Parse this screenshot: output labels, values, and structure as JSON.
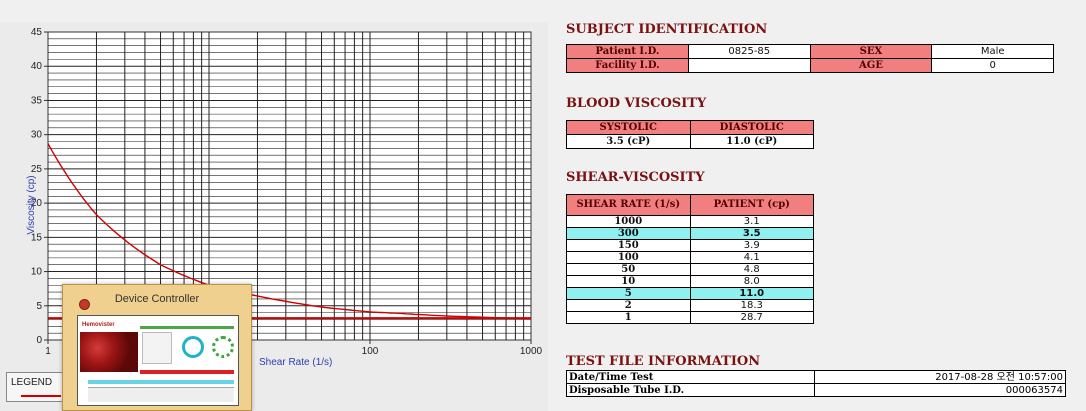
{
  "chart_data": {
    "type": "line",
    "x_scale": "log",
    "xlim": [
      1,
      1000
    ],
    "ylim": [
      0,
      45
    ],
    "x_ticks": [
      "1",
      "100",
      "1000"
    ],
    "y_ticks": [
      "0",
      "5",
      "10",
      "15",
      "20",
      "25",
      "30",
      "35",
      "40",
      "45"
    ],
    "xlabel": "Shear Rate (1/s)",
    "ylabel": "Viscosity (cp)",
    "grid": true,
    "series": [
      {
        "color": "#d00000",
        "points": [
          [
            1,
            28.7
          ],
          [
            2,
            18.3
          ],
          [
            5,
            11.0
          ],
          [
            10,
            8.0
          ],
          [
            50,
            4.8
          ],
          [
            100,
            4.1
          ],
          [
            150,
            3.9
          ],
          [
            300,
            3.5
          ],
          [
            1000,
            3.1
          ]
        ]
      },
      {
        "color": "#d00000",
        "points": [
          [
            1,
            3.2
          ],
          [
            1000,
            3.2
          ]
        ]
      }
    ]
  },
  "legend": {
    "label": "LEGEND"
  },
  "device_controller": {
    "title": "Device Controller",
    "logo": "Hemovister"
  },
  "subject": {
    "title": "SUBJECT IDENTIFICATION",
    "patient_id_label": "Patient I.D.",
    "patient_id": "0825-85",
    "sex_label": "SEX",
    "sex": "Male",
    "facility_id_label": "Facility I.D.",
    "facility_id": "",
    "age_label": "AGE",
    "age": "0"
  },
  "blood": {
    "title": "BLOOD VISCOSITY",
    "systolic_label": "SYSTOLIC",
    "systolic": "3.5 (cP)",
    "diastolic_label": "DIASTOLIC",
    "diastolic": "11.0 (cP)"
  },
  "shear": {
    "title": "SHEAR-VISCOSITY",
    "col_rate": "SHEAR RATE (1/s)",
    "col_patient": "PATIENT (cp)",
    "rows": [
      {
        "rate": "1000",
        "value": "3.1"
      },
      {
        "rate": "300",
        "value": "3.5"
      },
      {
        "rate": "150",
        "value": "3.9"
      },
      {
        "rate": "100",
        "value": "4.1"
      },
      {
        "rate": "50",
        "value": "4.8"
      },
      {
        "rate": "10",
        "value": "8.0"
      },
      {
        "rate": "5",
        "value": "11.0"
      },
      {
        "rate": "2",
        "value": "18.3"
      },
      {
        "rate": "1",
        "value": "28.7"
      }
    ]
  },
  "testfile": {
    "title": "TEST FILE INFORMATION",
    "date_label": "Date/Time Test",
    "date_value": "2017-08-28  오전 10:57:00",
    "tube_label": "Disposable Tube I.D.",
    "tube_value": "000063574"
  }
}
